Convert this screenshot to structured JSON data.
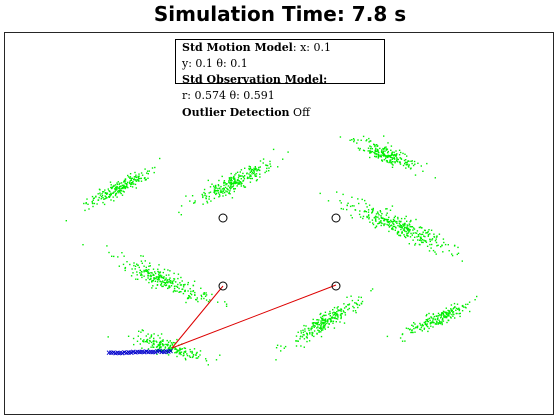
{
  "title": "Simulation Time: 7.8 s",
  "info": {
    "line1_bold": "Std Motion Model",
    "line1_rest": ": x: 0.1",
    "line2": "y: 0.1  θ: 0.1",
    "line3_bold": "Std Observation Model:",
    "line4": "r: 0.574  θ: 0.591",
    "line5_bold": "Outlier Detection",
    "line5_rest": " Off"
  },
  "colors": {
    "particles": "#00ee00",
    "trajectory": "#0000cc",
    "observation_line": "#dd0000",
    "landmark": "#000000"
  },
  "landmarks": [
    {
      "name": "landmark-1"
    },
    {
      "name": "landmark-2"
    },
    {
      "name": "landmark-3"
    },
    {
      "name": "landmark-4"
    }
  ],
  "particle_clusters": [
    {
      "name": "cluster-upper-left"
    },
    {
      "name": "cluster-upper-center"
    },
    {
      "name": "cluster-upper-right-top"
    },
    {
      "name": "cluster-right-middle"
    },
    {
      "name": "cluster-left-middle"
    },
    {
      "name": "cluster-bottom-center"
    },
    {
      "name": "cluster-bottom-right"
    },
    {
      "name": "cluster-robot"
    }
  ]
}
